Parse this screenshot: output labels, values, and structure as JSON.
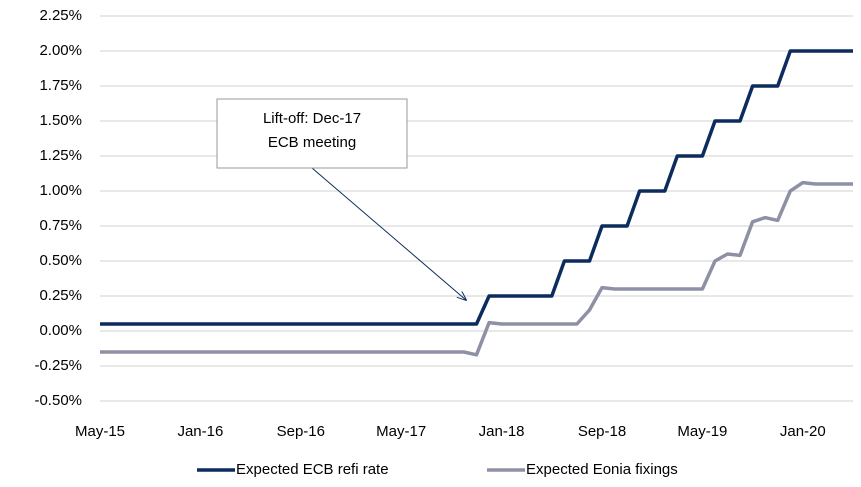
{
  "chart_data": {
    "type": "line",
    "categories": [
      "May-15",
      null,
      null,
      null,
      null,
      null,
      null,
      null,
      "Jan-16",
      null,
      null,
      null,
      null,
      null,
      null,
      null,
      "Sep-16",
      null,
      null,
      null,
      null,
      null,
      null,
      null,
      "May-17",
      null,
      null,
      null,
      null,
      null,
      null,
      null,
      "Jan-18",
      null,
      null,
      null,
      null,
      null,
      null,
      null,
      "Sep-18",
      null,
      null,
      null,
      null,
      null,
      null,
      null,
      "May-19",
      null,
      null,
      null,
      null,
      null,
      null,
      null,
      "Jan-20",
      null,
      null,
      null,
      null
    ],
    "series": [
      {
        "name": "Expected ECB refi rate",
        "color": "#0d2c5e",
        "values": [
          0.05,
          0.05,
          0.05,
          0.05,
          0.05,
          0.05,
          0.05,
          0.05,
          0.05,
          0.05,
          0.05,
          0.05,
          0.05,
          0.05,
          0.05,
          0.05,
          0.05,
          0.05,
          0.05,
          0.05,
          0.05,
          0.05,
          0.05,
          0.05,
          0.05,
          0.05,
          0.05,
          0.05,
          0.05,
          0.05,
          0.05,
          0.25,
          0.25,
          0.25,
          0.25,
          0.25,
          0.25,
          0.5,
          0.5,
          0.5,
          0.75,
          0.75,
          0.75,
          1.0,
          1.0,
          1.0,
          1.25,
          1.25,
          1.25,
          1.5,
          1.5,
          1.5,
          1.75,
          1.75,
          1.75,
          2.0,
          2.0,
          2.0,
          2.0,
          2.0,
          2.0
        ]
      },
      {
        "name": "Expected Eonia fixings",
        "color": "#8e91a6",
        "values": [
          -0.15,
          -0.15,
          -0.15,
          -0.15,
          -0.15,
          -0.15,
          -0.15,
          -0.15,
          -0.15,
          -0.15,
          -0.15,
          -0.15,
          -0.15,
          -0.15,
          -0.15,
          -0.15,
          -0.15,
          -0.15,
          -0.15,
          -0.15,
          -0.15,
          -0.15,
          -0.15,
          -0.15,
          -0.15,
          -0.15,
          -0.15,
          -0.15,
          -0.15,
          -0.15,
          -0.17,
          0.06,
          0.05,
          0.05,
          0.05,
          0.05,
          0.05,
          0.05,
          0.05,
          0.15,
          0.31,
          0.3,
          0.3,
          0.3,
          0.3,
          0.3,
          0.3,
          0.3,
          0.3,
          0.5,
          0.55,
          0.54,
          0.78,
          0.81,
          0.79,
          1.0,
          1.06,
          1.05,
          1.05,
          1.05,
          1.05
        ]
      }
    ],
    "ylim": [
      -0.5,
      2.25
    ],
    "yticks": [
      {
        "value": -0.5,
        "label": "-0.50%"
      },
      {
        "value": -0.25,
        "label": "-0.25%"
      },
      {
        "value": 0,
        "label": "0.00%"
      },
      {
        "value": 0.25,
        "label": "0.25%"
      },
      {
        "value": 0.5,
        "label": "0.50%"
      },
      {
        "value": 0.75,
        "label": "0.75%"
      },
      {
        "value": 1.0,
        "label": "1.00%"
      },
      {
        "value": 1.25,
        "label": "1.25%"
      },
      {
        "value": 1.5,
        "label": "1.50%"
      },
      {
        "value": 1.75,
        "label": "1.75%"
      },
      {
        "value": 2.0,
        "label": "2.00%"
      },
      {
        "value": 2.25,
        "label": "2.25%"
      }
    ],
    "grid": true,
    "legend": "bottom",
    "annotation": {
      "lines": [
        "Lift-off: Dec-17",
        "ECB meeting"
      ]
    }
  }
}
